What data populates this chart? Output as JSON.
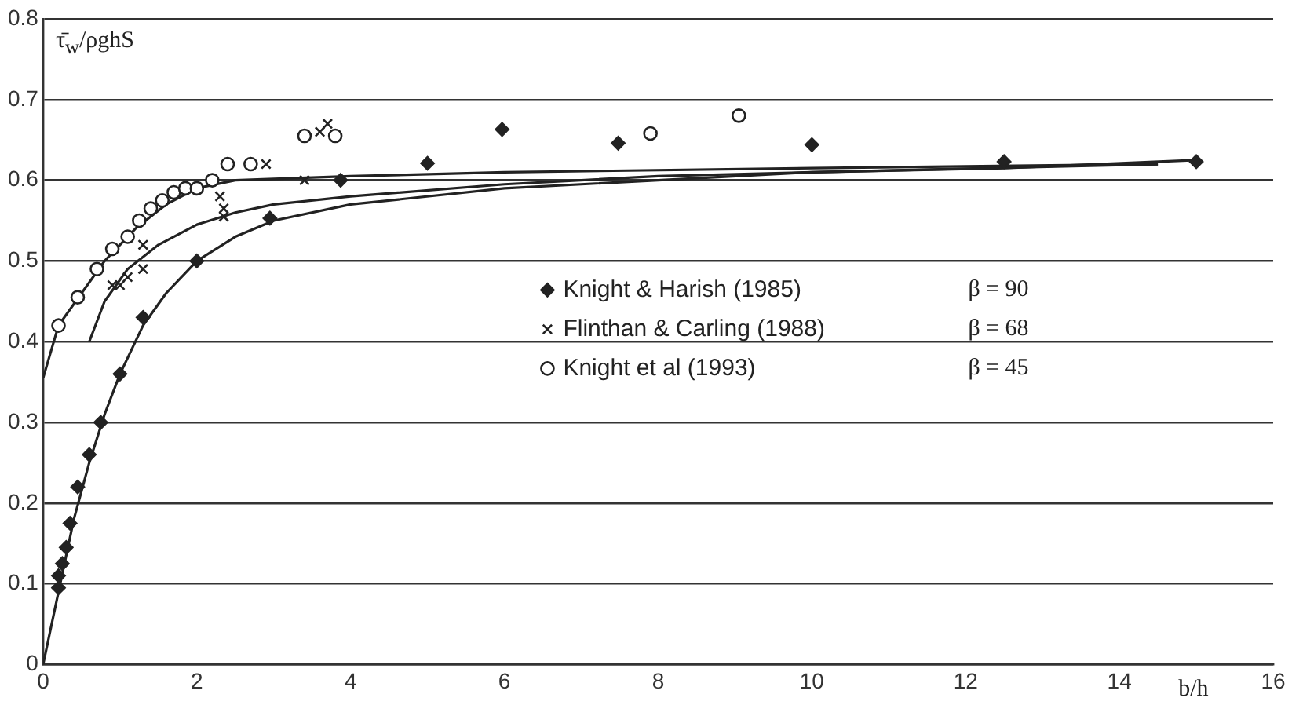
{
  "chart_data": {
    "type": "scatter",
    "ylabel": "τ̄$_{w}$/ρghS",
    "xlabel": "b/h",
    "xlim": [
      0,
      16
    ],
    "xticks": [
      0,
      2,
      4,
      6,
      8,
      10,
      12,
      14,
      16
    ],
    "ylim": [
      0,
      0.8
    ],
    "yticks": [
      0,
      0.1,
      0.2,
      0.3,
      0.4,
      0.5,
      0.6,
      0.7,
      0.8
    ],
    "grid": "y",
    "legend": "right",
    "annotations": [
      "β = 90",
      "β = 68",
      "β = 45"
    ],
    "series": [
      {
        "name": "Knight & Harish (1985)",
        "marker": "diamond",
        "color": "#222222",
        "x": [
          0.2,
          0.2,
          0.25,
          0.3,
          0.35,
          0.45,
          0.6,
          0.75,
          1.0,
          1.3,
          2.0,
          2.95,
          3.87,
          5.0,
          5.97,
          7.48,
          10.0,
          12.5,
          15.0
        ],
        "values": [
          0.095,
          0.11,
          0.125,
          0.145,
          0.175,
          0.22,
          0.26,
          0.3,
          0.36,
          0.43,
          0.5,
          0.553,
          0.6,
          0.621,
          0.663,
          0.646,
          0.644,
          0.623,
          0.623
        ]
      },
      {
        "name": "Flinthan & Carling (1988)",
        "marker": "cross",
        "color": "#222222",
        "x": [
          0.9,
          1.0,
          1.1,
          1.3,
          1.3,
          2.3,
          2.35,
          2.35,
          2.9,
          3.4,
          3.6,
          3.7
        ],
        "values": [
          0.47,
          0.47,
          0.48,
          0.49,
          0.52,
          0.58,
          0.565,
          0.555,
          0.62,
          0.6,
          0.66,
          0.67
        ]
      },
      {
        "name": "Knight et al (1993)",
        "marker": "circle",
        "color": "#222222",
        "x": [
          0.2,
          0.45,
          0.7,
          0.9,
          1.1,
          1.25,
          1.4,
          1.55,
          1.7,
          1.85,
          2.0,
          2.2,
          2.4,
          2.7,
          3.4,
          3.8,
          7.9,
          9.05
        ],
        "values": [
          0.42,
          0.455,
          0.49,
          0.515,
          0.53,
          0.55,
          0.565,
          0.575,
          0.585,
          0.59,
          0.59,
          0.6,
          0.62,
          0.62,
          0.655,
          0.655,
          0.658,
          0.68
        ]
      },
      {
        "type": "line",
        "marker": "none",
        "color": "#222222",
        "x": [
          0,
          0.2,
          0.5,
          0.8,
          1.2,
          1.6,
          2.0,
          2.5,
          4,
          6,
          10,
          14.5
        ],
        "values": [
          0.355,
          0.42,
          0.46,
          0.5,
          0.54,
          0.57,
          0.59,
          0.6,
          0.605,
          0.61,
          0.615,
          0.62
        ]
      },
      {
        "type": "line",
        "marker": "none",
        "color": "#222222",
        "x": [
          0.6,
          0.8,
          1.1,
          1.5,
          2,
          2.5,
          3,
          4,
          6,
          8,
          10,
          14.5
        ],
        "values": [
          0.4,
          0.45,
          0.49,
          0.52,
          0.545,
          0.56,
          0.57,
          0.58,
          0.595,
          0.605,
          0.61,
          0.62
        ]
      },
      {
        "type": "line",
        "marker": "none",
        "color": "#222222",
        "x": [
          0,
          0.2,
          0.4,
          0.6,
          0.8,
          1.0,
          1.3,
          1.6,
          2.0,
          2.5,
          3,
          4,
          6,
          8,
          10,
          12.5,
          15
        ],
        "values": [
          0,
          0.09,
          0.18,
          0.25,
          0.31,
          0.36,
          0.42,
          0.46,
          0.5,
          0.53,
          0.55,
          0.57,
          0.59,
          0.6,
          0.61,
          0.615,
          0.625
        ]
      }
    ]
  }
}
